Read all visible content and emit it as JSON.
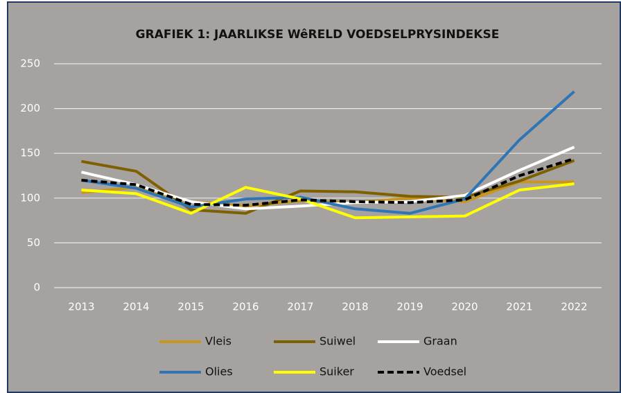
{
  "chart_data": {
    "type": "line",
    "title": "GRAFIEK 1: JAARLIKSE WêRELD VOEDSELPRYSINDEKSE",
    "categories": [
      "2013",
      "2014",
      "2015",
      "2016",
      "2017",
      "2018",
      "2019",
      "2020",
      "2021",
      "2022"
    ],
    "ylim": [
      0,
      250
    ],
    "yticks": [
      0,
      50,
      100,
      150,
      200,
      250
    ],
    "grid": true,
    "series": [
      {
        "name": "Vleis",
        "color": "#c8961e",
        "values": [
          106,
          112,
          96,
          91,
          97,
          95,
          100,
          96,
          118,
          118
        ]
      },
      {
        "name": "Suiwel",
        "color": "#7f6000",
        "values": [
          141,
          130,
          87,
          83,
          108,
          107,
          102,
          101,
          119,
          142
        ]
      },
      {
        "name": "Graan",
        "color": "#ffffff",
        "values": [
          129,
          115,
          96,
          88,
          91,
          95,
          96,
          103,
          131,
          157
        ]
      },
      {
        "name": "Olies",
        "color": "#2e75b6",
        "values": [
          120,
          111,
          90,
          99,
          101,
          88,
          83,
          99,
          165,
          219
        ]
      },
      {
        "name": "Suiker",
        "color": "#ffff00",
        "values": [
          109,
          105,
          83,
          112,
          99,
          78,
          79,
          80,
          109,
          116
        ]
      },
      {
        "name": "Voedsel",
        "color": "#000000",
        "dashed": true,
        "values": [
          120,
          115,
          93,
          92,
          98,
          96,
          95,
          98,
          125,
          144
        ]
      }
    ]
  }
}
